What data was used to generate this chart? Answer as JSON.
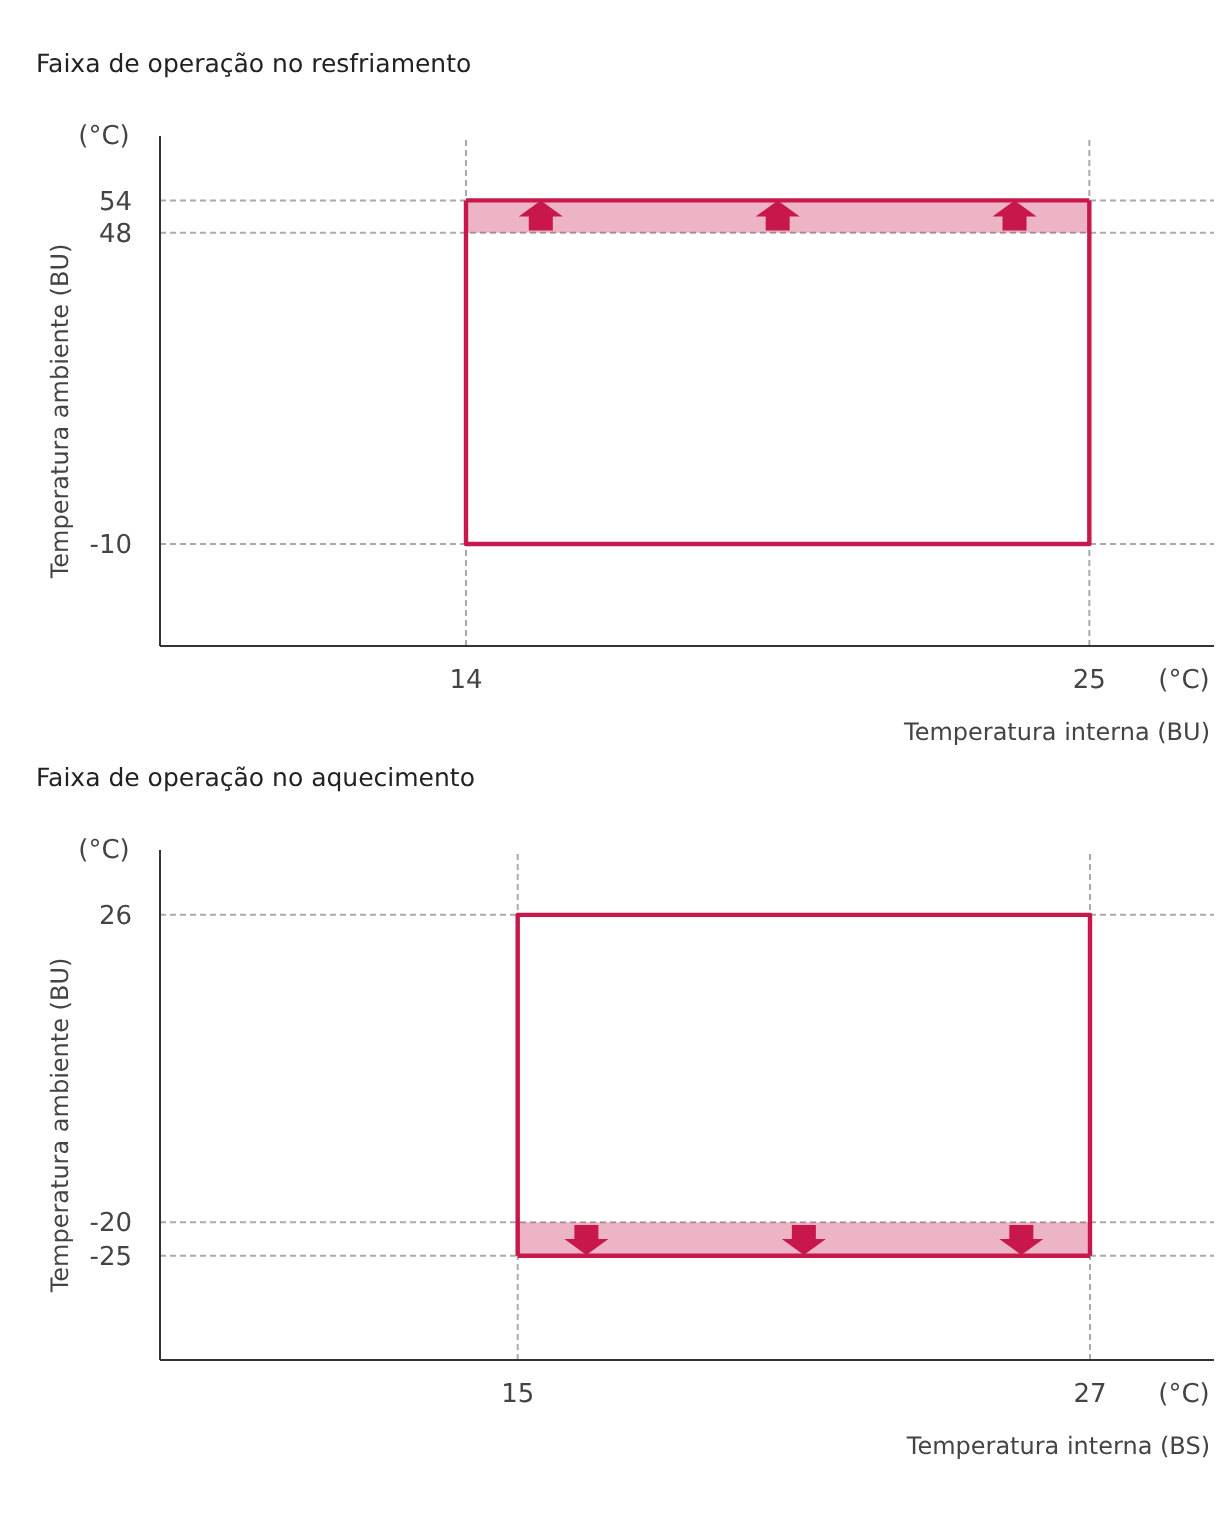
{
  "chart_data": [
    {
      "type": "line",
      "title": "Faixa de operação no resfriamento",
      "xlabel": "Temperatura interna (BU)",
      "ylabel": "Temperatura ambiente (BU)",
      "annotations": [
        "(°C)",
        "(°C)"
      ],
      "xlim": [
        8.6,
        27.2
      ],
      "ylim": [
        -29,
        66
      ],
      "xticks": [
        14,
        25
      ],
      "yticks": [
        -10,
        48,
        54
      ],
      "grid": true,
      "series": [
        {
          "color": "#c8174a",
          "x": [
            14,
            14,
            25,
            25
          ],
          "values": [
            54,
            -10,
            -10,
            54
          ]
        },
        {
          "color": "#c8174a",
          "x": [
            14,
            25
          ],
          "values": [
            54,
            54
          ],
          "lower": [
            48,
            48
          ],
          "upper": [
            54,
            54
          ]
        }
      ]
    },
    {
      "type": "line",
      "title": "Faixa de operação no aquecimento",
      "xlabel": "Temperatura interna (BS)",
      "ylabel": "Temperatura ambiente (BU)",
      "annotations": [
        "(°C)",
        "(°C)"
      ],
      "xlim": [
        7.5,
        29.6
      ],
      "ylim": [
        -40.6,
        35.7
      ],
      "xticks": [
        15,
        27
      ],
      "yticks": [
        -25,
        -20,
        26
      ],
      "grid": true,
      "series": [
        {
          "color": "#c8174a",
          "x": [
            15,
            15,
            27,
            27
          ],
          "values": [
            -25,
            26,
            26,
            -25
          ]
        },
        {
          "color": "#c8174a",
          "x": [
            15,
            27
          ],
          "values": [
            -25,
            -25
          ],
          "lower": [
            -25,
            -25
          ],
          "upper": [
            -20,
            -20
          ]
        }
      ]
    }
  ]
}
